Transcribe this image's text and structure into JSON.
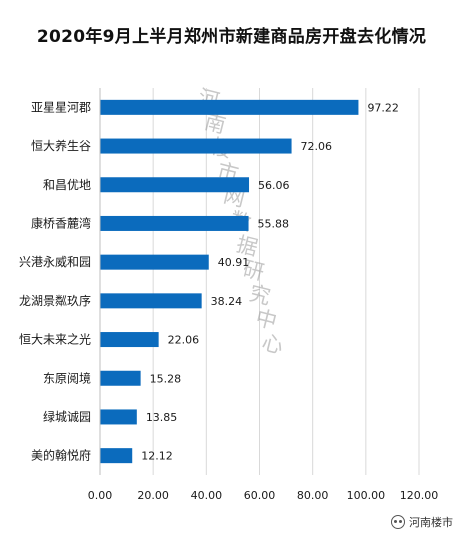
{
  "chart_data": {
    "type": "bar",
    "orientation": "horizontal",
    "title": "2020年9月上半月郑州市新建商品房开盘去化情况",
    "categories": [
      "亚星星河郡",
      "恒大养生谷",
      "和昌优地",
      "康桥香麓湾",
      "兴港永威和园",
      "龙湖景粼玖序",
      "恒大未来之光",
      "东原阅境",
      "绿城诚园",
      "美的翰悦府"
    ],
    "values": [
      97.22,
      72.06,
      56.06,
      55.88,
      40.91,
      38.24,
      22.06,
      15.28,
      13.85,
      12.12
    ],
    "value_labels": [
      "97.22",
      "72.06",
      "56.06",
      "55.88",
      "40.91",
      "38.24",
      "22.06",
      "15.28",
      "13.85",
      "12.12"
    ],
    "xlim": [
      0,
      120
    ],
    "xticks": [
      "0.00",
      "20.00",
      "40.00",
      "60.00",
      "80.00",
      "100.00",
      "120.00"
    ],
    "xlabel": "",
    "ylabel": "",
    "grid": "vertical",
    "legend": "none",
    "bar_color": "#0b6bbd",
    "grid_color": "#d9d9d9"
  },
  "watermark": "河南楼市网数据研究中心",
  "badge": {
    "text": "河南楼市",
    "icon": "wechat-icon"
  }
}
